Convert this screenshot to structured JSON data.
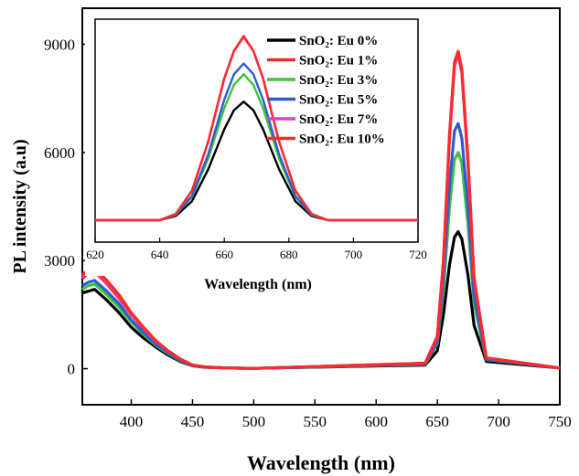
{
  "chart_data": [
    {
      "type": "line",
      "xlabel": "Wavelength (nm)",
      "ylabel": "PL intensity (a.u)",
      "xlim": [
        360,
        750
      ],
      "ylim": [
        -1000,
        10000
      ],
      "xticks": [
        400,
        450,
        500,
        550,
        600,
        650,
        700,
        750
      ],
      "yticks": [
        0,
        3000,
        6000,
        9000
      ],
      "grid": false,
      "series": [
        {
          "name": "SnO₂: Eu 0%",
          "color": "#000000",
          "uv_start": 2100,
          "peak": 3800,
          "x": [
            360,
            365,
            370,
            380,
            390,
            400,
            410,
            420,
            430,
            440,
            450,
            460,
            480,
            500,
            640,
            650,
            655,
            660,
            664,
            667,
            670,
            675,
            680,
            690,
            750
          ],
          "y": [
            2100,
            2150,
            2200,
            1900,
            1550,
            1150,
            850,
            600,
            380,
            200,
            80,
            40,
            20,
            10,
            100,
            500,
            1500,
            2900,
            3650,
            3800,
            3600,
            2600,
            1200,
            200,
            20
          ]
        },
        {
          "name": "SnO₂: Eu 1%",
          "color": "#e8302a",
          "uv_start": 2500,
          "peak": 8800,
          "x": [
            360,
            365,
            370,
            380,
            390,
            400,
            410,
            420,
            430,
            440,
            450,
            460,
            480,
            500,
            640,
            650,
            655,
            660,
            664,
            667,
            670,
            675,
            680,
            690,
            750
          ],
          "y": [
            2500,
            2650,
            2700,
            2350,
            1950,
            1500,
            1100,
            750,
            480,
            260,
            100,
            50,
            20,
            10,
            150,
            900,
            3000,
            6500,
            8500,
            8800,
            8300,
            5800,
            2500,
            300,
            20
          ]
        },
        {
          "name": "SnO₂: Eu 3%",
          "color": "#3cc43c",
          "uv_start": 2200,
          "peak": 6000,
          "x": [
            360,
            365,
            370,
            380,
            390,
            400,
            410,
            420,
            430,
            440,
            450,
            460,
            480,
            500,
            640,
            650,
            655,
            660,
            664,
            667,
            670,
            675,
            680,
            690,
            750
          ],
          "y": [
            2200,
            2300,
            2350,
            2050,
            1700,
            1300,
            950,
            650,
            420,
            220,
            90,
            45,
            20,
            10,
            120,
            700,
            2200,
            4500,
            5800,
            6000,
            5700,
            4000,
            1800,
            250,
            20
          ]
        },
        {
          "name": "SnO₂: Eu 5%",
          "color": "#2f5bd3",
          "uv_start": 2300,
          "peak": 6800,
          "x": [
            360,
            365,
            370,
            380,
            390,
            400,
            410,
            420,
            430,
            440,
            450,
            460,
            480,
            500,
            640,
            650,
            655,
            660,
            664,
            667,
            670,
            675,
            680,
            690,
            750
          ],
          "y": [
            2300,
            2400,
            2450,
            2150,
            1800,
            1350,
            1000,
            680,
            440,
            230,
            90,
            45,
            20,
            10,
            130,
            750,
            2500,
            5100,
            6600,
            6800,
            6400,
            4500,
            2000,
            260,
            20
          ]
        },
        {
          "name": "SnO₂: Eu 7%",
          "color": "#e040c0",
          "uv_start": 2550,
          "peak": 8700,
          "x": [
            360,
            365,
            370,
            380,
            390,
            400,
            410,
            420,
            430,
            440,
            450,
            460,
            480,
            500,
            640,
            650,
            655,
            660,
            664,
            667,
            670,
            675,
            680,
            690,
            750
          ],
          "y": [
            2550,
            2700,
            2750,
            2400,
            2000,
            1520,
            1120,
            760,
            490,
            265,
            100,
            50,
            20,
            10,
            150,
            880,
            2950,
            6400,
            8400,
            8700,
            8200,
            5700,
            2450,
            300,
            20
          ]
        },
        {
          "name": "SnO₂: Eu 10%",
          "color": "#ff2a2a",
          "uv_start": 2600,
          "peak": 8800,
          "x": [
            360,
            365,
            370,
            380,
            390,
            400,
            410,
            420,
            430,
            440,
            450,
            460,
            480,
            500,
            640,
            650,
            655,
            660,
            664,
            667,
            670,
            675,
            680,
            690,
            750
          ],
          "y": [
            2600,
            2750,
            2800,
            2450,
            2050,
            1550,
            1150,
            780,
            500,
            270,
            100,
            50,
            20,
            10,
            150,
            900,
            3000,
            6500,
            8500,
            8800,
            8300,
            5800,
            2500,
            300,
            20
          ]
        }
      ]
    },
    {
      "type": "line",
      "xlabel": "Wavelength (nm)",
      "ylabel": "",
      "xlim": [
        620,
        720
      ],
      "ylim": [
        0,
        9500
      ],
      "xticks": [
        620,
        640,
        660,
        680,
        700,
        720
      ],
      "yticks": [],
      "legend_position": "top-right",
      "series": [
        {
          "name": "SnO₂: Eu 0%",
          "color": "#000000",
          "x": [
            620,
            640,
            645,
            650,
            655,
            660,
            663,
            666,
            669,
            672,
            677,
            682,
            687,
            692,
            700,
            720
          ],
          "y": [
            0,
            0,
            200,
            900,
            2400,
            4300,
            5200,
            5600,
            5200,
            4300,
            2400,
            900,
            200,
            0,
            0,
            0
          ]
        },
        {
          "name": "SnO₂: Eu 1%",
          "color": "#e8302a",
          "x": [
            620,
            640,
            645,
            650,
            655,
            660,
            663,
            666,
            669,
            672,
            677,
            682,
            687,
            692,
            700,
            720
          ],
          "y": [
            0,
            0,
            300,
            1400,
            3700,
            6700,
            8000,
            8700,
            8000,
            6700,
            3700,
            1400,
            300,
            0,
            0,
            0
          ]
        },
        {
          "name": "SnO₂: Eu 3%",
          "color": "#3cc43c",
          "x": [
            620,
            640,
            645,
            650,
            655,
            660,
            663,
            666,
            669,
            672,
            677,
            682,
            687,
            692,
            700,
            720
          ],
          "y": [
            0,
            0,
            250,
            1100,
            2900,
            5300,
            6400,
            6900,
            6400,
            5300,
            2900,
            1100,
            250,
            0,
            0,
            0
          ]
        },
        {
          "name": "SnO₂: Eu 5%",
          "color": "#2f5bd3",
          "x": [
            620,
            640,
            645,
            650,
            655,
            660,
            663,
            666,
            669,
            672,
            677,
            682,
            687,
            692,
            700,
            720
          ],
          "y": [
            0,
            0,
            260,
            1150,
            3100,
            5700,
            6900,
            7400,
            6900,
            5700,
            3100,
            1150,
            260,
            0,
            0,
            0
          ]
        },
        {
          "name": "SnO₂: Eu 7%",
          "color": "#e040c0",
          "x": [
            620,
            640,
            645,
            650,
            655,
            660,
            663,
            666,
            669,
            672,
            677,
            682,
            687,
            692,
            700,
            720
          ],
          "y": [
            0,
            0,
            300,
            1400,
            3700,
            6700,
            8000,
            8650,
            8000,
            6700,
            3700,
            1400,
            300,
            0,
            0,
            0
          ]
        },
        {
          "name": "SnO₂: Eu 10%",
          "color": "#ff2a2a",
          "x": [
            620,
            640,
            645,
            650,
            655,
            660,
            663,
            666,
            669,
            672,
            677,
            682,
            687,
            692,
            700,
            720
          ],
          "y": [
            0,
            0,
            300,
            1400,
            3700,
            6700,
            8000,
            8700,
            8000,
            6700,
            3700,
            1400,
            300,
            0,
            0,
            0
          ]
        }
      ]
    }
  ]
}
